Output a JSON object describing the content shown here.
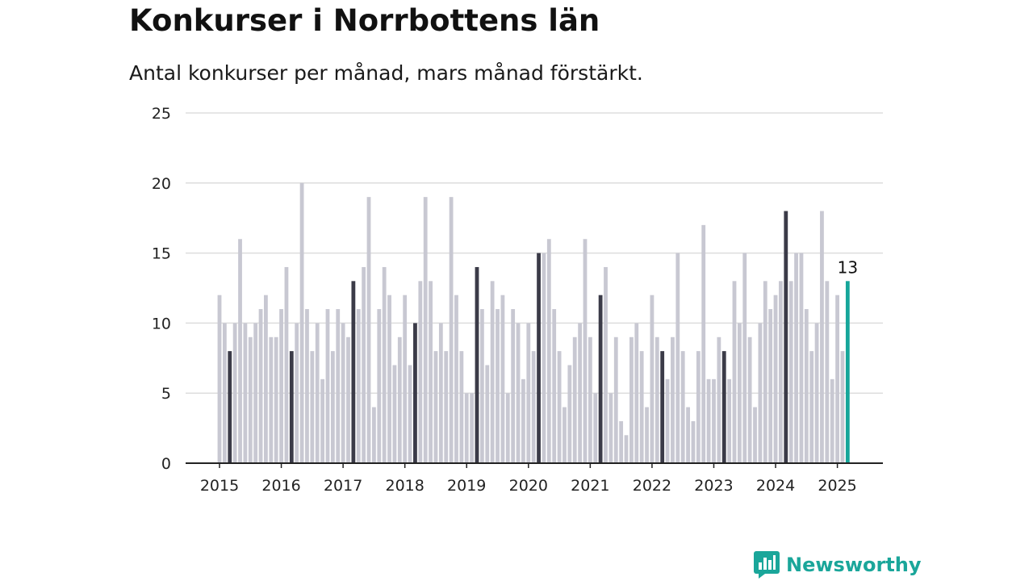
{
  "title": "Konkurser i Norrbottens län",
  "subtitle": "Antal konkurser per månad, mars månad förstärkt.",
  "brand": {
    "name": "Newsworthy",
    "color": "#1aa69a"
  },
  "colors": {
    "bar": "#c8c8d2",
    "highlight": "#3b3b48",
    "latest": "#16a69a",
    "grid": "#dddddd",
    "axis": "#222222"
  },
  "chart_data": {
    "type": "bar",
    "title": "Konkurser i Norrbottens län",
    "subtitle": "Antal konkurser per månad, mars månad förstärkt.",
    "xlabel": "",
    "ylabel": "",
    "ylim": [
      0,
      25
    ],
    "y_ticks": [
      "0",
      "5",
      "10",
      "15",
      "20",
      "25"
    ],
    "x_tick_labels": [
      "2015",
      "2016",
      "2017",
      "2018",
      "2019",
      "2020",
      "2021",
      "2022",
      "2023",
      "2024",
      "2025"
    ],
    "grid": true,
    "legend": "none",
    "start_month": "2015-01",
    "end_month": "2025-03",
    "highlighted_month": "mars",
    "annotation": {
      "month": "2025-03",
      "text": "13"
    },
    "values": [
      12,
      10,
      8,
      10,
      16,
      10,
      9,
      10,
      11,
      12,
      9,
      9,
      11,
      14,
      8,
      10,
      20,
      11,
      8,
      10,
      6,
      11,
      8,
      11,
      10,
      9,
      13,
      11,
      14,
      19,
      4,
      11,
      14,
      12,
      7,
      9,
      12,
      7,
      10,
      13,
      19,
      13,
      8,
      10,
      8,
      19,
      12,
      8,
      5,
      5,
      14,
      11,
      7,
      13,
      11,
      12,
      5,
      11,
      10,
      6,
      10,
      8,
      15,
      15,
      16,
      11,
      8,
      4,
      7,
      9,
      10,
      16,
      9,
      5,
      12,
      14,
      5,
      9,
      3,
      2,
      9,
      10,
      8,
      4,
      12,
      9,
      8,
      6,
      9,
      15,
      8,
      4,
      3,
      8,
      17,
      6,
      6,
      9,
      8,
      6,
      13,
      10,
      15,
      9,
      4,
      10,
      13,
      11,
      12,
      13,
      18,
      13,
      15,
      15,
      11,
      8,
      10,
      18,
      13,
      6,
      12,
      8,
      13
    ]
  }
}
